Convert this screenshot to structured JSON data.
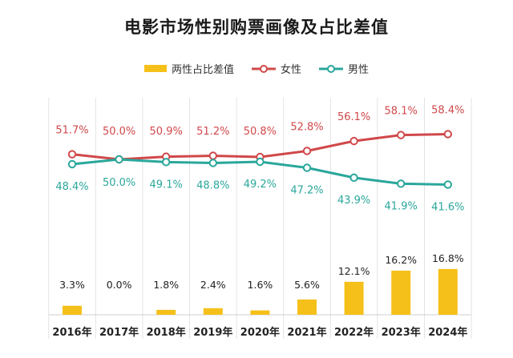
{
  "title": "电影市场性别购票画像及占比差值",
  "legend": {
    "diff_label": "两性占比差值",
    "female_label": "女性",
    "male_label": "男性"
  },
  "colors": {
    "bar": "#F5C01A",
    "female": "#D0484A",
    "male": "#2AA79B",
    "grid": "#E3E3E3",
    "axis_text": "#222222"
  },
  "chart_data": {
    "type": "bar",
    "categories": [
      "2016年",
      "2017年",
      "2018年",
      "2019年",
      "2020年",
      "2021年",
      "2022年",
      "2023年",
      "2024年"
    ],
    "series": [
      {
        "name": "两性占比差值",
        "type": "bar",
        "values": [
          3.3,
          0.0,
          1.8,
          2.4,
          1.6,
          5.6,
          12.1,
          16.2,
          16.8
        ],
        "labels": [
          "3.3%",
          "0.0%",
          "1.8%",
          "2.4%",
          "1.6%",
          "5.6%",
          "12.1%",
          "16.2%",
          "16.8%"
        ]
      },
      {
        "name": "女性",
        "type": "line",
        "values": [
          51.7,
          50.0,
          50.9,
          51.2,
          50.8,
          52.8,
          56.1,
          58.1,
          58.4
        ],
        "labels": [
          "51.7%",
          "50.0%",
          "50.9%",
          "51.2%",
          "50.8%",
          "52.8%",
          "56.1%",
          "58.1%",
          "58.4%"
        ]
      },
      {
        "name": "男性",
        "type": "line",
        "values": [
          48.4,
          50.0,
          49.1,
          48.8,
          49.2,
          47.2,
          43.9,
          41.9,
          41.6
        ],
        "labels": [
          "48.4%",
          "50.0%",
          "49.1%",
          "48.8%",
          "49.2%",
          "47.2%",
          "43.9%",
          "41.9%",
          "41.6%"
        ]
      }
    ],
    "grid": true,
    "legend_position": "top-center"
  }
}
